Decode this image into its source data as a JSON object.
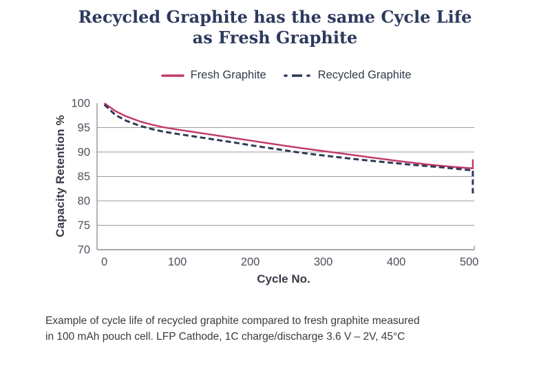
{
  "title": {
    "line1": "Recycled Graphite has the same Cycle Life",
    "line2": "as Fresh Graphite"
  },
  "legend": {
    "items": [
      {
        "label": "Fresh Graphite",
        "color": "#C23A6B",
        "style": "solid"
      },
      {
        "label": "Recycled Graphite",
        "color": "#2E3A56",
        "style": "dot-dash"
      }
    ]
  },
  "chart_data": {
    "type": "line",
    "title": "Recycled Graphite has the same Cycle Life as Fresh Graphite",
    "xlabel": "Cycle No.",
    "ylabel": "Capacity Retention %",
    "xlim": [
      -10,
      507
    ],
    "ylim": [
      70,
      100
    ],
    "x_ticks": [
      0,
      100,
      200,
      300,
      400,
      500
    ],
    "y_ticks": [
      100,
      95,
      90,
      85,
      80,
      75,
      70
    ],
    "grid_y": [
      95,
      90,
      85,
      80,
      75
    ],
    "grid": "horizontal-only",
    "legend_position": "top-center",
    "colors": {
      "grid": "#9B9B9B",
      "axis": "#8C8C8C",
      "tick_text": "#4B505E"
    },
    "series": [
      {
        "name": "Fresh Graphite",
        "color": "#C23A6B",
        "dash": "solid",
        "stroke_width": 2.5,
        "points": [
          [
            0,
            100
          ],
          [
            15,
            98.4
          ],
          [
            30,
            97.3
          ],
          [
            50,
            96.2
          ],
          [
            65,
            95.6
          ],
          [
            80,
            95.1
          ],
          [
            100,
            94.6
          ],
          [
            120,
            94.15
          ],
          [
            140,
            93.7
          ],
          [
            160,
            93.25
          ],
          [
            180,
            92.8
          ],
          [
            200,
            92.35
          ],
          [
            220,
            91.9
          ],
          [
            240,
            91.45
          ],
          [
            260,
            91.0
          ],
          [
            280,
            90.6
          ],
          [
            300,
            90.2
          ],
          [
            320,
            89.8
          ],
          [
            340,
            89.4
          ],
          [
            360,
            89.0
          ],
          [
            380,
            88.6
          ],
          [
            400,
            88.2
          ],
          [
            420,
            87.85
          ],
          [
            440,
            87.5
          ],
          [
            460,
            87.2
          ],
          [
            480,
            86.95
          ],
          [
            500,
            86.7
          ],
          [
            505,
            86.65
          ],
          [
            505,
            88.5
          ]
        ]
      },
      {
        "name": "Recycled Graphite",
        "color": "#2E3A56",
        "dash": "dashed",
        "stroke_width": 3,
        "points": [
          [
            0,
            99.7
          ],
          [
            15,
            97.6
          ],
          [
            30,
            96.4
          ],
          [
            50,
            95.3
          ],
          [
            65,
            94.7
          ],
          [
            80,
            94.2
          ],
          [
            100,
            93.7
          ],
          [
            120,
            93.25
          ],
          [
            140,
            92.8
          ],
          [
            160,
            92.35
          ],
          [
            180,
            91.9
          ],
          [
            200,
            91.4
          ],
          [
            220,
            90.95
          ],
          [
            240,
            90.5
          ],
          [
            260,
            90.05
          ],
          [
            280,
            89.65
          ],
          [
            300,
            89.3
          ],
          [
            320,
            88.95
          ],
          [
            340,
            88.6
          ],
          [
            360,
            88.3
          ],
          [
            380,
            88.0
          ],
          [
            400,
            87.7
          ],
          [
            420,
            87.4
          ],
          [
            440,
            87.15
          ],
          [
            460,
            86.9
          ],
          [
            480,
            86.6
          ],
          [
            500,
            86.3
          ],
          [
            505,
            86.25
          ],
          [
            505,
            81.4
          ]
        ]
      }
    ]
  },
  "caption": {
    "line1": "Example of cycle life of recycled graphite compared to fresh graphite measured",
    "line2": "in 100 mAh pouch cell. LFP Cathode, 1C charge/discharge 3.6 V – 2V, 45°C"
  }
}
